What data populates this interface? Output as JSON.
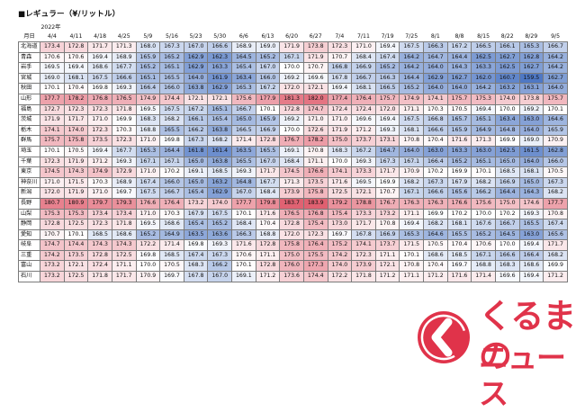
{
  "title": "■レギュラー（¥/リットル）",
  "header": {
    "year_label": "2022年",
    "corner_label": "月日",
    "dates": [
      "4/4",
      "4/11",
      "4/18",
      "4/25",
      "5/9",
      "5/16",
      "5/23",
      "5/30",
      "6/6",
      "6/13",
      "6/20",
      "6/27",
      "7/4",
      "7/11",
      "7/19",
      "7/25",
      "8/1",
      "8/8",
      "8/15",
      "8/22",
      "8/29",
      "9/5"
    ]
  },
  "colors": {
    "high_red": "#e06070",
    "low_blue": "#4f78c4",
    "neutral": "#ffffff",
    "brand_red": "#e0334a"
  },
  "rows": [
    {
      "pref": "北海道",
      "values": [
        173.4,
        172.8,
        171.7,
        171.3,
        168.0,
        167.3,
        167.0,
        166.6,
        168.9,
        169.0,
        171.9,
        173.8,
        172.3,
        171.0,
        169.4,
        167.5,
        166.3,
        167.2,
        166.5,
        166.1,
        165.3,
        166.7
      ]
    },
    {
      "pref": "青森",
      "values": [
        170.6,
        170.6,
        169.4,
        168.9,
        165.9,
        165.2,
        162.9,
        162.3,
        164.5,
        165.2,
        167.1,
        171.9,
        170.7,
        168.4,
        167.4,
        164.2,
        164.7,
        164.4,
        162.5,
        162.7,
        162.8,
        164.2
      ]
    },
    {
      "pref": "岩手",
      "values": [
        169.5,
        169.4,
        168.6,
        167.7,
        165.2,
        165.1,
        162.9,
        163.3,
        165.4,
        167.0,
        170.0,
        170.7,
        166.8,
        166.9,
        165.2,
        164.2,
        164.0,
        164.3,
        163.3,
        162.5,
        162.7,
        164.2
      ]
    },
    {
      "pref": "宮城",
      "values": [
        169.0,
        168.1,
        167.5,
        166.6,
        165.1,
        165.5,
        164.0,
        161.9,
        163.4,
        166.0,
        169.2,
        169.6,
        167.8,
        166.7,
        166.3,
        164.4,
        162.9,
        162.7,
        162.0,
        160.7,
        159.5,
        162.7
      ]
    },
    {
      "pref": "秋田",
      "values": [
        170.1,
        170.4,
        169.8,
        169.3,
        166.4,
        166.0,
        163.8,
        162.9,
        165.3,
        167.2,
        172.0,
        172.1,
        169.4,
        168.1,
        166.5,
        165.2,
        164.0,
        164.0,
        164.2,
        163.2,
        163.1,
        164.0
      ]
    },
    {
      "pref": "山形",
      "values": [
        177.7,
        178.2,
        176.8,
        176.5,
        174.9,
        174.4,
        172.1,
        172.1,
        175.6,
        177.9,
        181.3,
        182.0,
        177.4,
        176.4,
        175.7,
        174.9,
        174.1,
        175.7,
        175.3,
        174.0,
        173.8,
        175.7
      ]
    },
    {
      "pref": "福島",
      "values": [
        172.7,
        172.3,
        172.3,
        171.8,
        169.5,
        167.5,
        167.2,
        165.1,
        166.7,
        170.1,
        172.8,
        174.7,
        172.4,
        172.4,
        172.0,
        171.1,
        170.3,
        170.5,
        169.4,
        170.0,
        169.2,
        170.1
      ]
    },
    {
      "pref": "茨城",
      "values": [
        171.9,
        171.7,
        171.0,
        169.9,
        168.3,
        168.2,
        166.1,
        165.4,
        165.0,
        165.9,
        169.2,
        171.0,
        171.0,
        169.6,
        169.4,
        167.5,
        166.8,
        165.7,
        165.1,
        163.4,
        163.0,
        164.6
      ]
    },
    {
      "pref": "栃木",
      "values": [
        174.1,
        174.0,
        172.3,
        170.3,
        168.8,
        165.5,
        166.2,
        163.8,
        166.5,
        166.9,
        170.0,
        172.6,
        171.9,
        171.2,
        169.3,
        168.1,
        166.6,
        165.9,
        164.9,
        164.8,
        164.0,
        165.9
      ]
    },
    {
      "pref": "群馬",
      "values": [
        175.7,
        175.8,
        173.5,
        172.3,
        171.0,
        169.8,
        167.3,
        168.2,
        171.4,
        172.8,
        176.7,
        178.2,
        175.0,
        173.7,
        173.1,
        170.8,
        170.4,
        171.6,
        171.3,
        169.9,
        169.0,
        170.9
      ]
    },
    {
      "pref": "埼玉",
      "values": [
        170.1,
        170.5,
        169.4,
        167.7,
        165.3,
        164.4,
        161.8,
        161.4,
        163.5,
        165.5,
        169.1,
        170.8,
        168.3,
        167.2,
        164.7,
        164.0,
        163.0,
        163.3,
        163.0,
        162.5,
        161.5,
        162.8
      ]
    },
    {
      "pref": "千葉",
      "values": [
        172.3,
        171.9,
        171.2,
        169.3,
        167.1,
        167.1,
        165.0,
        163.8,
        165.5,
        167.0,
        168.4,
        171.1,
        170.0,
        169.3,
        167.3,
        167.1,
        166.4,
        165.2,
        165.1,
        165.0,
        164.0,
        166.0
      ]
    },
    {
      "pref": "東京",
      "values": [
        174.5,
        174.3,
        174.9,
        172.9,
        171.0,
        170.2,
        169.1,
        168.5,
        169.3,
        171.7,
        174.5,
        176.6,
        174.1,
        173.3,
        171.7,
        170.9,
        170.2,
        169.9,
        170.1,
        168.5,
        168.1,
        170.5
      ]
    },
    {
      "pref": "神奈川",
      "values": [
        171.0,
        171.5,
        170.3,
        168.9,
        167.4,
        166.0,
        165.0,
        163.2,
        164.8,
        167.7,
        171.3,
        173.5,
        171.6,
        169.5,
        169.9,
        168.2,
        167.3,
        167.9,
        168.2,
        166.9,
        165.0,
        167.3
      ]
    },
    {
      "pref": "新潟",
      "values": [
        172.0,
        171.9,
        171.0,
        169.7,
        167.5,
        166.7,
        165.4,
        162.9,
        167.0,
        168.4,
        173.9,
        175.8,
        172.5,
        172.1,
        170.7,
        167.1,
        166.6,
        165.6,
        166.2,
        164.4,
        164.3,
        168.2
      ]
    },
    {
      "pref": "長野",
      "values": [
        180.7,
        180.9,
        179.7,
        179.3,
        176.6,
        176.4,
        173.2,
        174.0,
        177.7,
        179.8,
        183.7,
        183.9,
        179.2,
        178.8,
        176.7,
        176.3,
        176.3,
        176.6,
        175.6,
        175.0,
        174.6,
        177.7
      ]
    },
    {
      "pref": "山梨",
      "values": [
        175.3,
        175.3,
        173.4,
        173.4,
        171.0,
        170.3,
        167.9,
        167.5,
        170.1,
        171.6,
        176.5,
        176.8,
        175.4,
        173.3,
        173.2,
        171.1,
        169.9,
        170.2,
        170.0,
        170.2,
        169.3,
        170.8
      ]
    },
    {
      "pref": "静岡",
      "values": [
        172.8,
        172.5,
        172.3,
        171.8,
        169.5,
        168.6,
        165.4,
        165.2,
        168.4,
        170.4,
        172.8,
        175.4,
        173.0,
        171.7,
        170.8,
        169.4,
        168.2,
        168.1,
        167.6,
        166.7,
        165.5,
        167.4
      ]
    },
    {
      "pref": "愛知",
      "values": [
        170.7,
        170.1,
        168.5,
        168.6,
        165.2,
        164.9,
        163.5,
        163.6,
        166.3,
        168.8,
        172.0,
        172.3,
        169.7,
        167.8,
        166.9,
        165.3,
        164.6,
        165.5,
        165.2,
        164.5,
        163.0,
        165.6
      ]
    },
    {
      "pref": "岐阜",
      "values": [
        174.7,
        174.4,
        174.3,
        174.3,
        172.2,
        171.4,
        169.8,
        169.3,
        171.6,
        172.8,
        175.8,
        176.4,
        175.2,
        174.1,
        173.7,
        171.5,
        170.5,
        170.4,
        170.6,
        170.0,
        169.4,
        171.7
      ]
    },
    {
      "pref": "三重",
      "values": [
        174.2,
        173.5,
        172.8,
        172.5,
        169.8,
        168.5,
        167.4,
        167.3,
        170.6,
        171.1,
        175.0,
        175.5,
        174.2,
        172.3,
        171.1,
        170.1,
        168.6,
        168.5,
        167.1,
        166.6,
        166.4,
        168.2
      ]
    },
    {
      "pref": "富山",
      "values": [
        173.2,
        172.1,
        172.4,
        171.1,
        170.0,
        170.5,
        168.3,
        166.2,
        170.1,
        172.8,
        176.0,
        177.3,
        174.0,
        173.9,
        172.1,
        170.8,
        170.4,
        169.7,
        168.8,
        168.3,
        168.6,
        169.9
      ]
    },
    {
      "pref": "石川",
      "values": [
        173.2,
        172.5,
        171.8,
        171.7,
        170.9,
        169.7,
        167.8,
        167.0,
        169.1,
        171.2,
        173.6,
        174.4,
        172.2,
        171.8,
        171.2,
        171.1,
        171.2,
        171.6,
        171.4,
        169.6,
        169.4,
        171.2
      ]
    }
  ],
  "logo": {
    "top_text": "くるまの",
    "bottom_text": "ニュース",
    "badge_icon": "chevron-left-icon"
  }
}
